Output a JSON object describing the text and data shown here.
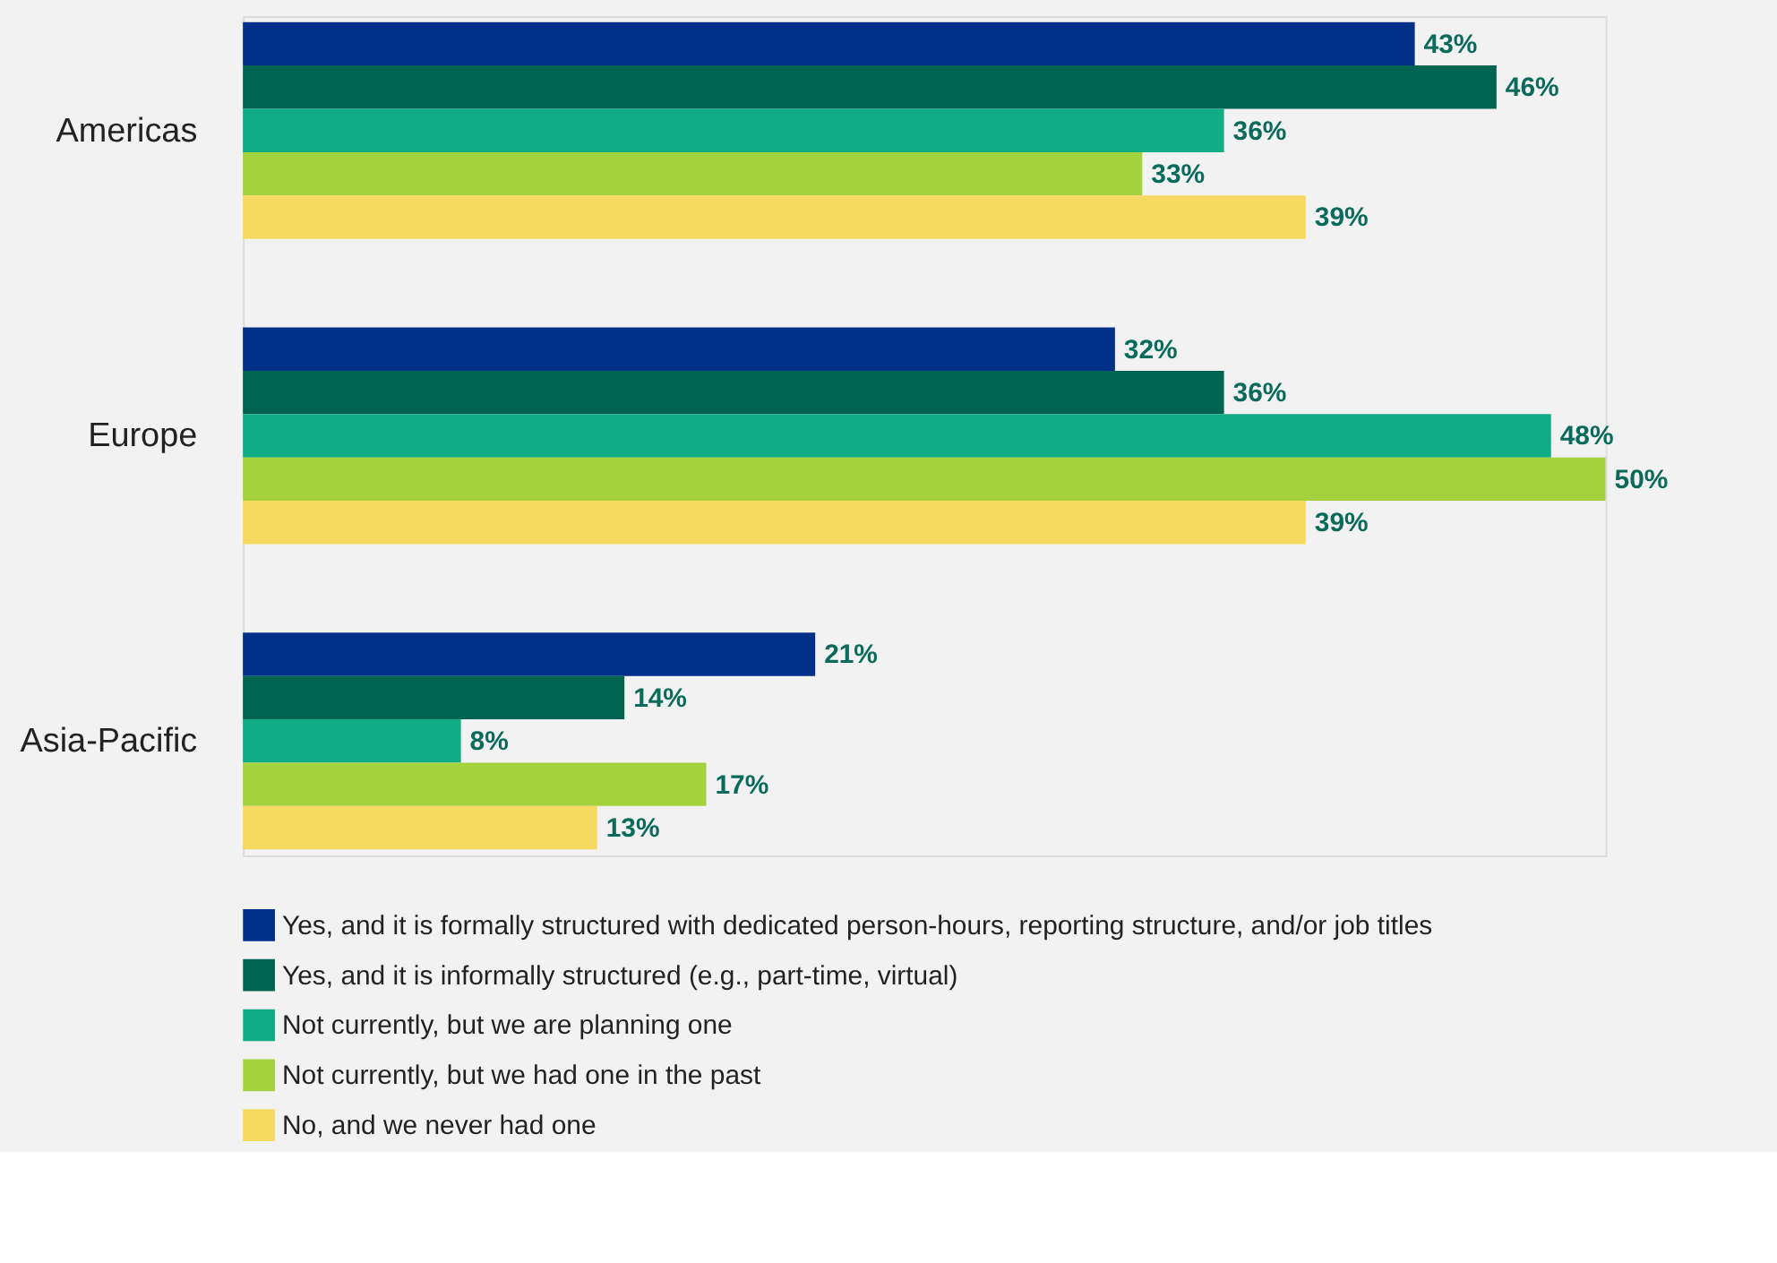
{
  "chart_data": {
    "type": "bar",
    "orientation": "horizontal",
    "legend": "bottom",
    "categories": [
      "Americas",
      "Europe",
      "Asia-Pacific"
    ],
    "series": [
      {
        "name": "Yes, and it is formally structured with dedicated person-hours, reporting structure, and/or job titles",
        "color": "#003087",
        "values": [
          43,
          32,
          21
        ],
        "value_labels": [
          "43%",
          "32%",
          "21%"
        ]
      },
      {
        "name": "Yes, and it is informally structured (e.g., part-time, virtual)",
        "color": "#006450",
        "values": [
          46,
          36,
          14
        ],
        "value_labels": [
          "46%",
          "36%",
          "14%"
        ]
      },
      {
        "name": "Not currently, but we are planning one",
        "color": "#10ac84",
        "values": [
          36,
          48,
          8
        ],
        "value_labels": [
          "36%",
          "48%",
          "8%"
        ]
      },
      {
        "name": "Not currently, but we had one in the past",
        "color": "#a4d13e",
        "values": [
          33,
          50,
          17
        ],
        "value_labels": [
          "33%",
          "50%",
          "17%"
        ]
      },
      {
        "name": "No, and we never had one",
        "color": "#f7d860",
        "values": [
          39,
          39,
          13
        ],
        "value_labels": [
          "39%",
          "39%",
          "13%"
        ]
      }
    ]
  }
}
